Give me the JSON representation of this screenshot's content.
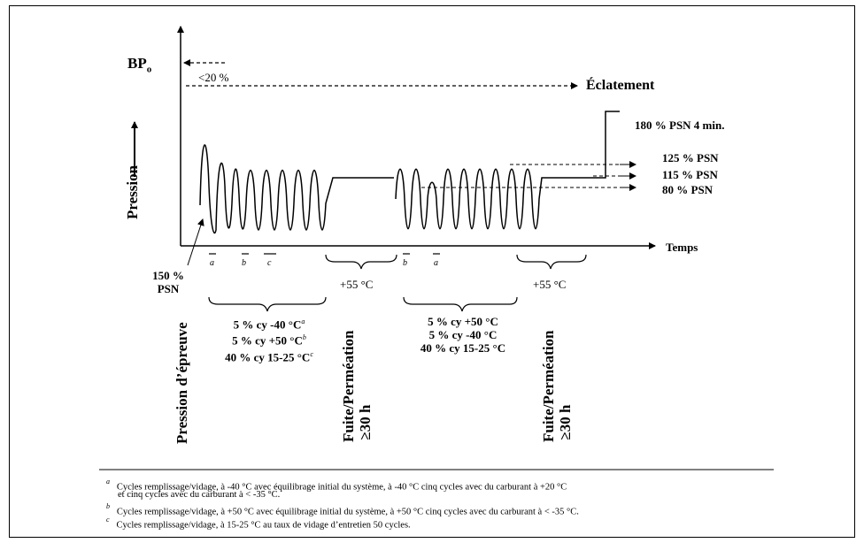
{
  "labels": {
    "bpo": "BP",
    "bpo_sub": "o",
    "lt20": "<20 %",
    "eclatement": "Éclatement",
    "psn180": "180 % PSN 4 min.",
    "psn125": "125 % PSN",
    "psn115": "115 % PSN",
    "psn80": "80 % PSN",
    "temps": "Temps",
    "pression": "Pression",
    "psn150_line1": "150 %",
    "psn150_line2": "PSN",
    "pression_epreuve": "Pression d’épreuve",
    "temp1": "+55 °C",
    "temp2": "+55 °C",
    "fuite1_line1": "Fuite/Perméation",
    "fuite1_line2": "≥30 h",
    "fuite2_line1": "Fuite/Perméation",
    "fuite2_line2": "≥30 h",
    "marker_a1": "a",
    "marker_b1": "b",
    "marker_c1": "c",
    "marker_b2": "b",
    "marker_a2": "a"
  },
  "cycles1": {
    "line1": "5 % cy -40 °C",
    "line1_sup": "a",
    "line2": "5 % cy +50 °C",
    "line2_sup": "b",
    "line3": "40 % cy 15-25 °C",
    "line3_sup": "c"
  },
  "cycles2": {
    "line1": "5 % cy +50 °C",
    "line2": "5 % cy -40 °C",
    "line3": "40 % cy 15-25 °C"
  },
  "footnotes": {
    "a_mark": "a",
    "a_line1": "Cycles remplissage/vidage, à -40 °C avec équilibrage initial du système, à -40 °C cinq cycles avec du carburant à +20 °C",
    "a_line2": "et cinq cycles avec du carburant à < -35 °C.",
    "b_mark": "b",
    "b_line": "Cycles remplissage/vidage, à +50 °C avec équilibrage initial du système, à +50 °C cinq cycles avec du carburant à < -35 °C.",
    "c_mark": "c",
    "c_line": "Cycles remplissage/vidage, à 15-25 °C au taux de vidage d’entretien 50 cycles."
  }
}
